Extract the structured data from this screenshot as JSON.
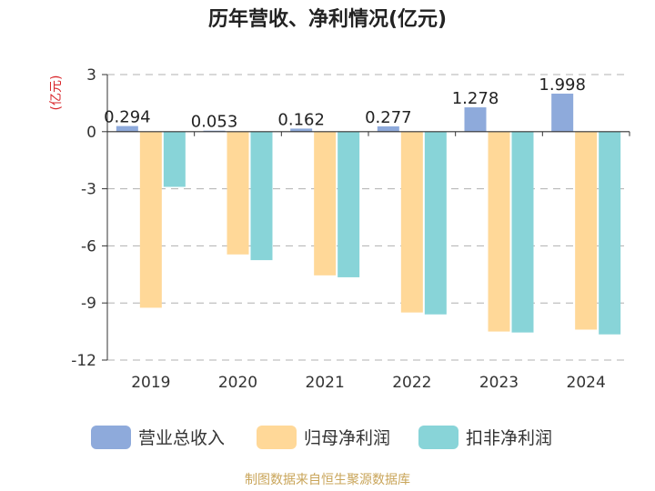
{
  "chart_data": {
    "type": "bar",
    "title": "历年营收、净利情况(亿元)",
    "ylabel": "(亿元)",
    "xlabel": "",
    "categories": [
      "2019",
      "2020",
      "2021",
      "2022",
      "2023",
      "2024"
    ],
    "series": [
      {
        "name": "营业总收入",
        "color": "#8eaadb",
        "values": [
          0.294,
          0.053,
          0.162,
          0.277,
          1.278,
          1.998
        ]
      },
      {
        "name": "归母净利润",
        "color": "#ffd898",
        "values": [
          -9.25,
          -6.45,
          -7.55,
          -9.5,
          -10.5,
          -10.4
        ]
      },
      {
        "name": "扣非净利润",
        "color": "#88d4d8",
        "values": [
          -2.9,
          -6.75,
          -7.65,
          -9.6,
          -10.55,
          -10.65
        ]
      }
    ],
    "data_labels": [
      "0.294",
      "0.053",
      "0.162",
      "0.277",
      "1.278",
      "1.998"
    ],
    "ylim": [
      -12,
      3
    ],
    "yticks": [
      "3",
      "0",
      "-3",
      "-6",
      "-9",
      "-12"
    ],
    "ytick_values": [
      3,
      0,
      -3,
      -6,
      -9,
      -12
    ],
    "grid": true,
    "legend_position": "bottom"
  },
  "source": "制图数据来自恒生聚源数据库"
}
